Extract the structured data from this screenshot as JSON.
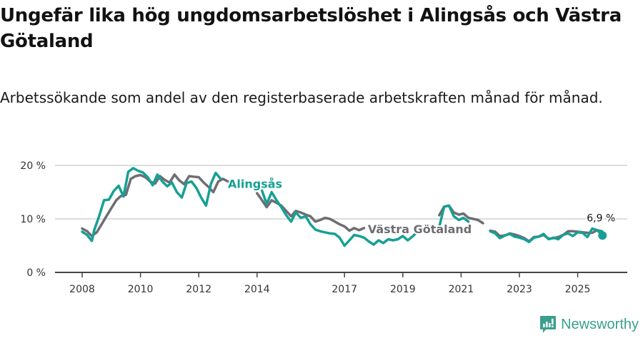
{
  "header": {
    "title": "Ungefär lika hög ungdomsarbetslöshet i Alingsås och Västra Götaland",
    "subtitle": "Arbetssökande som andel av den registerbaserade arbetskraften månad för månad."
  },
  "brand": {
    "name": "Newsworthy",
    "icon": "bar-chart-speech-bubble-icon",
    "color": "#3a9f8c"
  },
  "colors": {
    "alingsas": "#16a095",
    "vastra_gotaland": "#6e6d72",
    "grid": "#dddddd",
    "axis": "#444444"
  },
  "chart_data": {
    "type": "line",
    "title": "Ungefär lika hög ungdomsarbetslöshet i Alingsås och Västra Götaland",
    "subtitle": "Arbetssökande som andel av den registerbaserade arbetskraften månad för månad.",
    "xlabel": "",
    "ylabel": "",
    "ylim": [
      0,
      20
    ],
    "y_ticks": [
      0,
      10,
      20
    ],
    "y_tick_labels": [
      "0 %",
      "10 %",
      "20 %"
    ],
    "x_ticks": [
      2008,
      2010,
      2012,
      2014,
      2017,
      2019,
      2021,
      2023,
      2025
    ],
    "x_tick_labels": [
      "2008",
      "2010",
      "2012",
      "2014",
      "2017",
      "2019",
      "2021",
      "2023",
      "2025"
    ],
    "xlim": [
      2007.1,
      2026.7
    ],
    "grid": true,
    "legend": "inline labels",
    "annotations": [
      {
        "text": "Alingsås",
        "series": "Alingsås",
        "x": 2013.0,
        "y": 16.5
      },
      {
        "text": "Västra Götaland",
        "series": "Västra Götaland",
        "x": 2017.8,
        "y": 8.0
      },
      {
        "text": "6,9 %",
        "series": "Alingsås",
        "x": 2025.85,
        "y": 6.9
      }
    ],
    "series": [
      {
        "name": "Alingsås",
        "color": "#16a095",
        "x": [
          2008.0,
          2008.17,
          2008.33,
          2008.42,
          2008.58,
          2008.75,
          2008.92,
          2009.08,
          2009.25,
          2009.42,
          2009.58,
          2009.75,
          2009.92,
          2010.08,
          2010.25,
          2010.42,
          2010.58,
          2010.75,
          2010.92,
          2011.08,
          2011.25,
          2011.42,
          2011.58,
          2011.75,
          2011.92,
          2012.08,
          2012.25,
          2012.42,
          2012.58,
          2012.75,
          2012.92,
          null,
          2014.17,
          2014.33,
          2014.5,
          2014.67,
          2014.83,
          2015.0,
          2015.17,
          2015.33,
          2015.5,
          2015.67,
          2015.83,
          2016.0,
          2016.17,
          2016.33,
          2016.5,
          2016.67,
          2016.83,
          2017.0,
          2017.17,
          2017.33,
          2017.5,
          2017.67,
          2017.83,
          2018.0,
          2018.17,
          2018.33,
          2018.5,
          2018.67,
          2018.83,
          2019.0,
          2019.17,
          2019.33,
          2019.5,
          null,
          2020.25,
          2020.42,
          2020.58,
          2020.75,
          2020.92,
          2021.08,
          2021.25,
          null,
          2022.0,
          2022.17,
          2022.33,
          2022.5,
          2022.67,
          2022.83,
          2023.0,
          2023.17,
          2023.33,
          2023.5,
          2023.67,
          2023.83,
          2024.0,
          2024.17,
          2024.33,
          2024.5,
          2024.67,
          2024.83,
          2025.0,
          2025.17,
          2025.33,
          2025.5,
          2025.67,
          2025.83,
          2025.92
        ],
        "values": [
          7.6,
          7.0,
          5.9,
          8.0,
          10.5,
          13.5,
          13.6,
          15.2,
          16.2,
          14.2,
          18.8,
          19.5,
          19.0,
          18.7,
          17.8,
          16.3,
          18.3,
          17.0,
          16.1,
          16.8,
          15.0,
          14.0,
          16.7,
          17.0,
          15.8,
          14.0,
          12.5,
          16.6,
          18.6,
          17.5,
          null,
          null,
          15.3,
          12.8,
          15.0,
          13.5,
          12.2,
          10.7,
          9.5,
          11.2,
          10.2,
          10.5,
          9.0,
          8.0,
          7.7,
          7.5,
          7.3,
          7.2,
          6.5,
          5.0,
          6.0,
          7.0,
          6.8,
          6.5,
          5.8,
          5.2,
          6.0,
          5.5,
          6.2,
          6.0,
          6.2,
          6.8,
          6.0,
          6.7,
          7.6,
          null,
          8.5,
          12.3,
          12.5,
          10.5,
          9.8,
          10.2,
          9.5,
          null,
          7.7,
          7.3,
          6.4,
          6.9,
          7.2,
          6.7,
          6.5,
          6.2,
          5.7,
          6.5,
          6.7,
          7.2,
          6.2,
          6.5,
          6.2,
          7.0,
          7.3,
          6.8,
          7.5,
          7.4,
          6.6,
          8.2,
          7.9,
          7.7,
          6.9
        ]
      },
      {
        "name": "Västra Götaland",
        "color": "#6e6d72",
        "x": [
          2008.0,
          2008.17,
          2008.33,
          2008.5,
          2008.67,
          2008.83,
          2009.0,
          2009.17,
          2009.33,
          2009.5,
          2009.67,
          2009.83,
          2010.0,
          2010.17,
          2010.33,
          2010.5,
          2010.67,
          2010.83,
          2011.0,
          2011.17,
          2011.33,
          2011.5,
          2011.67,
          2011.83,
          2012.0,
          2012.17,
          2012.33,
          2012.5,
          2012.67,
          2012.83,
          2013.0,
          null,
          2013.25,
          null,
          2014.0,
          2014.17,
          2014.33,
          2014.5,
          2014.67,
          2014.83,
          2015.0,
          2015.17,
          2015.33,
          2015.5,
          2015.67,
          2015.83,
          2016.0,
          2016.17,
          2016.33,
          2016.5,
          2016.67,
          2016.83,
          2017.0,
          2017.17,
          2017.33,
          2017.5,
          2017.67,
          null,
          2020.25,
          2020.42,
          2020.58,
          2020.75,
          2020.92,
          2021.08,
          2021.25,
          2021.42,
          2021.58,
          2021.75,
          null,
          2022.0,
          2022.17,
          2022.33,
          2022.5,
          2022.67,
          2022.83,
          2023.0,
          2023.17,
          2023.33,
          2023.5,
          2023.67,
          2023.83,
          2024.0,
          2024.17,
          2024.33,
          2024.5,
          2024.67,
          2024.83,
          2025.0,
          2025.17,
          2025.33,
          2025.5,
          2025.67,
          2025.83
        ],
        "values": [
          8.2,
          7.7,
          6.8,
          7.5,
          9.0,
          10.5,
          12.0,
          13.5,
          14.3,
          14.5,
          17.5,
          18.0,
          18.2,
          17.8,
          17.0,
          16.6,
          18.0,
          17.3,
          16.8,
          18.3,
          17.2,
          16.5,
          18.0,
          17.9,
          17.8,
          16.8,
          16.0,
          15.0,
          17.0,
          17.5,
          17.0,
          null,
          15.0,
          null,
          14.8,
          13.5,
          12.2,
          13.5,
          13.0,
          12.5,
          11.5,
          10.5,
          11.5,
          11.2,
          10.8,
          10.5,
          9.5,
          9.8,
          10.2,
          10.0,
          9.5,
          9.0,
          8.6,
          7.8,
          8.3,
          7.9,
          8.3,
          null,
          10.7,
          12.3,
          12.5,
          11.2,
          10.8,
          11.0,
          10.2,
          10.0,
          9.8,
          9.2,
          null,
          7.8,
          7.6,
          6.8,
          6.9,
          7.3,
          7.1,
          6.8,
          6.4,
          5.8,
          6.6,
          6.7,
          7.0,
          6.3,
          6.4,
          6.6,
          7.0,
          7.7,
          7.7,
          7.6,
          7.5,
          7.4,
          7.4,
          7.9,
          7.1
        ]
      }
    ]
  }
}
